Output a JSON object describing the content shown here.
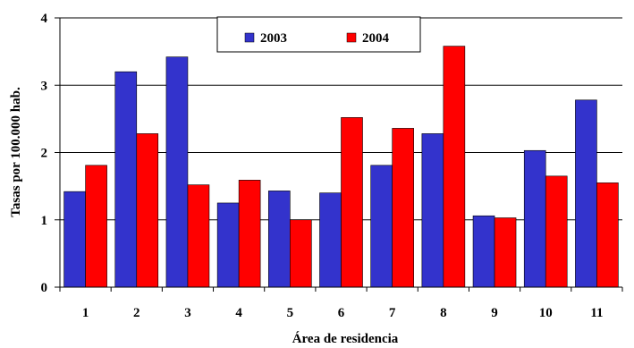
{
  "chart_data": {
    "type": "bar",
    "categories": [
      "1",
      "2",
      "3",
      "4",
      "5",
      "6",
      "7",
      "8",
      "9",
      "10",
      "11"
    ],
    "series": [
      {
        "name": "2003",
        "color": "#3333cc",
        "values": [
          1.42,
          3.2,
          3.42,
          1.25,
          1.43,
          1.4,
          1.81,
          2.28,
          1.06,
          2.03,
          2.78
        ]
      },
      {
        "name": "2004",
        "color": "#ff0000",
        "values": [
          1.81,
          2.28,
          1.52,
          1.59,
          1.0,
          2.52,
          2.36,
          3.58,
          1.03,
          1.65,
          1.55
        ]
      }
    ],
    "xlabel": "Área de residencia",
    "ylabel": "Tasas por 100.000 hab.",
    "ylim": [
      0,
      4
    ],
    "yticks": [
      0,
      1,
      2,
      3,
      4
    ],
    "grid": true,
    "legend_position": "top-center"
  }
}
